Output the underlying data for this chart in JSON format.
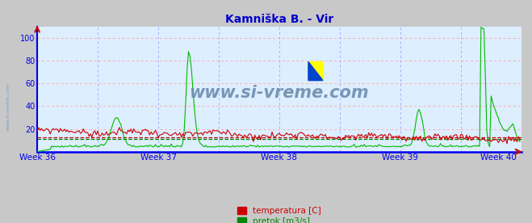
{
  "title": "Kamniška B. - Vir",
  "title_color": "#0000cc",
  "title_fontsize": 10,
  "bg_color": "#c8c8c8",
  "plot_bg_color": "#ddeeff",
  "xlim": [
    0,
    336
  ],
  "ylim": [
    0,
    110
  ],
  "yticks": [
    20,
    40,
    60,
    80,
    100
  ],
  "xtick_labels": [
    "Week 36",
    "Week 37",
    "Week 38",
    "Week 39",
    "Week 40"
  ],
  "xtick_positions": [
    0,
    84,
    168,
    252,
    320
  ],
  "grid_color_h": "#ffaaaa",
  "grid_color_v": "#aaaaff",
  "axis_color": "#0000ee",
  "watermark": "www.si-vreme.com",
  "watermark_color": "#6688aa",
  "side_watermark_color": "#7799bb",
  "legend_temp_color": "#cc0000",
  "legend_flow_color": "#008800",
  "temp_line_color": "#cc0000",
  "flow_line_color": "#00bb00",
  "avg_temp_value": 12.5,
  "avg_flow_value": 11.0,
  "num_points": 336
}
